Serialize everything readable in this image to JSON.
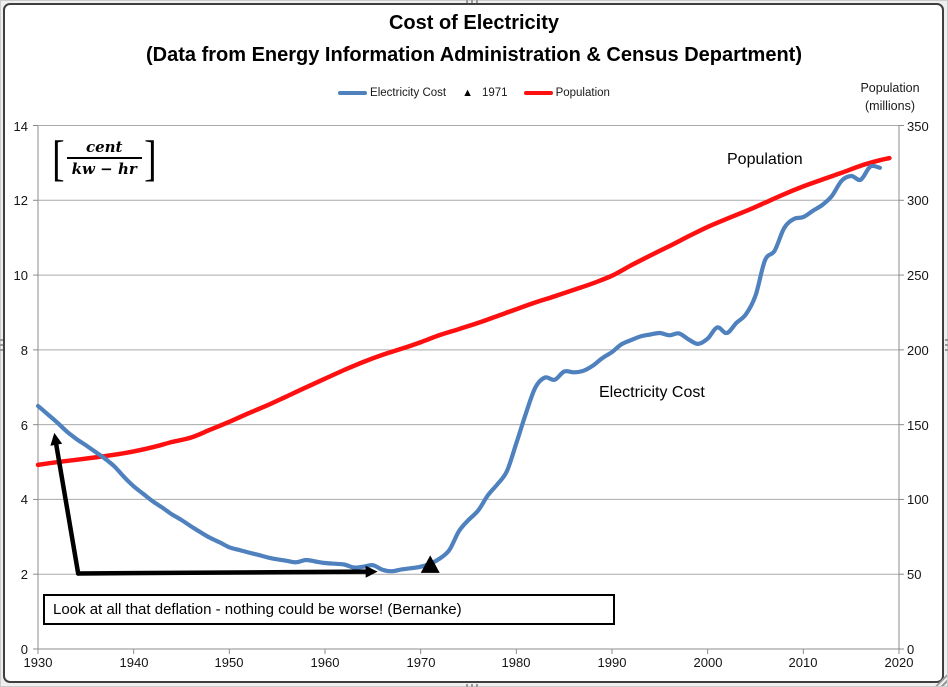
{
  "title": "Cost of Electricity",
  "subtitle": "(Data from Energy Information Administration & Census Department)",
  "right_axis_title": {
    "line1": "Population",
    "line2": "(millions)"
  },
  "unit_label": {
    "numerator": "cent",
    "denominator": "kw − hr"
  },
  "series_labels": {
    "population": "Population",
    "electricity": "Electricity Cost"
  },
  "note": {
    "text": "Look at all that deflation - nothing could be worse! (Bernanke)"
  },
  "legend": {
    "items": [
      {
        "label": "Electricity Cost",
        "marker": "line",
        "color": "#4E81BD"
      },
      {
        "label": "1971",
        "marker": "triangle",
        "glyph": "▲",
        "color": "#000000"
      },
      {
        "label": "Population",
        "marker": "line",
        "color": "#FE1010"
      }
    ]
  },
  "chart_data": {
    "type": "line",
    "title": "Cost of Electricity",
    "subtitle": "(Data from Energy Information Administration & Census Department)",
    "grid": true,
    "legend_position": "top-center",
    "x_range": [
      1930,
      2020
    ],
    "x_ticks": [
      1930,
      1940,
      1950,
      1960,
      1970,
      1980,
      1990,
      2000,
      2010,
      2020
    ],
    "y_left": {
      "label": "cent / kw-hr",
      "range": [
        0,
        14
      ],
      "ticks": [
        0,
        2,
        4,
        6,
        8,
        10,
        12,
        14
      ]
    },
    "y_right": {
      "label": "Population (millions)",
      "range": [
        0,
        350
      ],
      "ticks": [
        0,
        50,
        100,
        150,
        200,
        250,
        300,
        350
      ]
    },
    "series": [
      {
        "name": "Electricity Cost",
        "axis": "left",
        "color": "#4E81BD",
        "width": 4.2,
        "x": [
          1930,
          1931,
          1932,
          1933,
          1934,
          1935,
          1936,
          1937,
          1938,
          1939,
          1940,
          1941,
          1942,
          1943,
          1944,
          1945,
          1946,
          1947,
          1948,
          1949,
          1950,
          1951,
          1952,
          1953,
          1954,
          1955,
          1956,
          1957,
          1958,
          1959,
          1960,
          1961,
          1962,
          1963,
          1964,
          1965,
          1966,
          1967,
          1968,
          1969,
          1970,
          1971,
          1972,
          1973,
          1974,
          1975,
          1976,
          1977,
          1978,
          1979,
          1980,
          1981,
          1982,
          1983,
          1984,
          1985,
          1986,
          1987,
          1988,
          1989,
          1990,
          1991,
          1992,
          1993,
          1994,
          1995,
          1996,
          1997,
          1998,
          1999,
          2000,
          2001,
          2002,
          2003,
          2004,
          2005,
          2006,
          2007,
          2008,
          2009,
          2010,
          2011,
          2012,
          2013,
          2014,
          2015,
          2016,
          2017,
          2018
        ],
        "values": [
          6.5,
          6.28,
          6.06,
          5.82,
          5.62,
          5.45,
          5.27,
          5.09,
          4.88,
          4.6,
          4.35,
          4.15,
          3.95,
          3.78,
          3.6,
          3.45,
          3.28,
          3.12,
          2.97,
          2.85,
          2.72,
          2.65,
          2.58,
          2.52,
          2.45,
          2.4,
          2.36,
          2.32,
          2.38,
          2.34,
          2.3,
          2.28,
          2.26,
          2.18,
          2.2,
          2.24,
          2.12,
          2.08,
          2.13,
          2.16,
          2.2,
          2.28,
          2.42,
          2.65,
          3.15,
          3.45,
          3.7,
          4.1,
          4.4,
          4.75,
          5.5,
          6.3,
          7.0,
          7.26,
          7.2,
          7.42,
          7.4,
          7.44,
          7.58,
          7.78,
          7.94,
          8.15,
          8.26,
          8.36,
          8.41,
          8.45,
          8.39,
          8.44,
          8.28,
          8.16,
          8.3,
          8.6,
          8.45,
          8.72,
          8.95,
          9.45,
          10.4,
          10.65,
          11.26,
          11.5,
          11.55,
          11.72,
          11.88,
          12.12,
          12.52,
          12.65,
          12.55,
          12.9,
          12.87
        ]
      },
      {
        "name": "Population",
        "axis": "right",
        "color": "#FE1010",
        "width": 4.5,
        "x": [
          1930,
          1932,
          1934,
          1936,
          1938,
          1940,
          1942,
          1944,
          1946,
          1948,
          1950,
          1952,
          1954,
          1956,
          1958,
          1960,
          1962,
          1964,
          1966,
          1968,
          1970,
          1972,
          1974,
          1976,
          1978,
          1980,
          1982,
          1984,
          1986,
          1988,
          1990,
          1992,
          1994,
          1996,
          1998,
          2000,
          2002,
          2004,
          2006,
          2008,
          2010,
          2012,
          2014,
          2016,
          2018,
          2019
        ],
        "values": [
          123.1,
          124.9,
          126.5,
          128.1,
          129.9,
          132.1,
          134.9,
          138.4,
          141.4,
          146.6,
          151.9,
          157.6,
          163.0,
          168.9,
          174.9,
          180.7,
          186.5,
          191.9,
          196.6,
          200.7,
          205.1,
          209.9,
          213.9,
          218.0,
          222.6,
          227.2,
          231.7,
          235.8,
          240.1,
          244.5,
          249.6,
          256.5,
          263.1,
          269.4,
          275.9,
          282.2,
          287.6,
          292.8,
          298.4,
          304.1,
          309.3,
          313.9,
          318.4,
          323.1,
          326.8,
          328.2
        ]
      }
    ],
    "marker_1971": {
      "name": "1971",
      "shape": "triangle-up",
      "x": 1971,
      "value": 2.25,
      "color": "#000000"
    },
    "annotation_arrow": {
      "shape": "elbow-double-arrow",
      "color": "#000000",
      "points": [
        [
          1931.7,
          5.78
        ],
        [
          1934.2,
          2.02
        ],
        [
          1965.5,
          2.07
        ]
      ]
    }
  }
}
